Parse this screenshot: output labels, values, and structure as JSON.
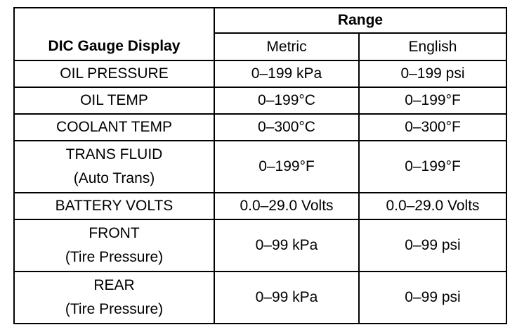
{
  "table": {
    "header": {
      "row_label": "DIC Gauge Display",
      "group_label": "Range",
      "metric_label": "Metric",
      "english_label": "English"
    },
    "rows": [
      {
        "label_lines": [
          "OIL PRESSURE"
        ],
        "metric": "0–199 kPa",
        "english": "0–199 psi"
      },
      {
        "label_lines": [
          "OIL TEMP"
        ],
        "metric": "0–199°C",
        "english": "0–199°F"
      },
      {
        "label_lines": [
          "COOLANT TEMP"
        ],
        "metric": "0–300°C",
        "english": "0–300°F"
      },
      {
        "label_lines": [
          "TRANS FLUID",
          "(Auto Trans)"
        ],
        "metric": "0–199°F",
        "english": "0–199°F"
      },
      {
        "label_lines": [
          "BATTERY VOLTS"
        ],
        "metric": "0.0–29.0 Volts",
        "english": "0.0–29.0 Volts"
      },
      {
        "label_lines": [
          "FRONT",
          "(Tire Pressure)"
        ],
        "metric": "0–99 kPa",
        "english": "0–99 psi"
      },
      {
        "label_lines": [
          "REAR",
          "(Tire Pressure)"
        ],
        "metric": "0–99 kPa",
        "english": "0–99 psi"
      }
    ]
  }
}
